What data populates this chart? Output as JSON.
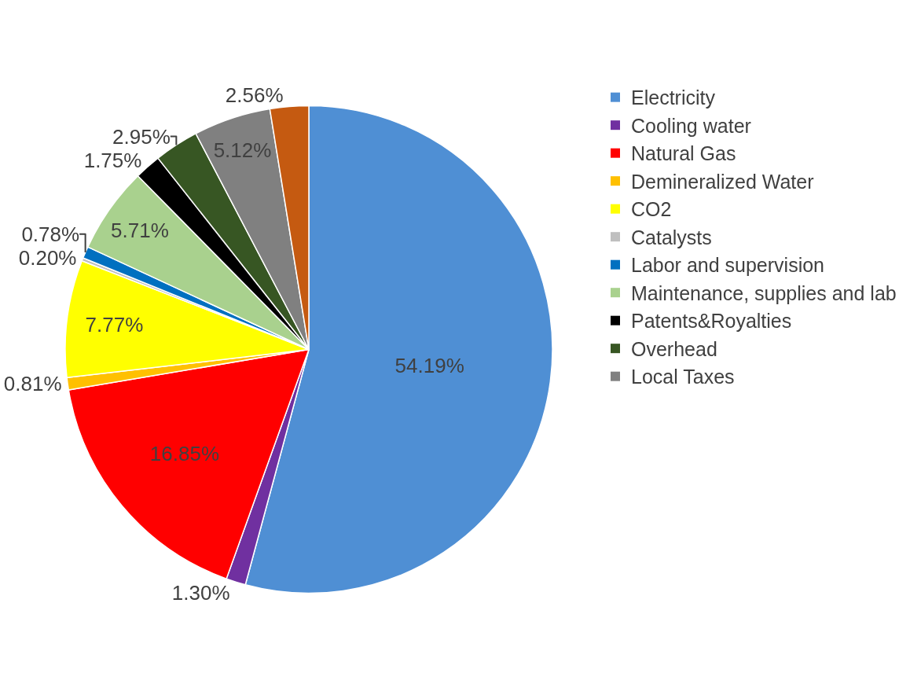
{
  "chart_data": {
    "type": "pie",
    "categories": [
      "Electricity",
      "Cooling water",
      "Natural Gas",
      "Demineralized Water",
      "CO2",
      "Catalysts",
      "Labor and supervision",
      "Maintenance, supplies and lab",
      "Patents&Royalties",
      "Overhead",
      "Local Taxes",
      null
    ],
    "values": [
      54.19,
      1.3,
      16.85,
      0.81,
      7.77,
      0.2,
      0.78,
      5.71,
      1.75,
      2.95,
      5.12,
      2.56
    ],
    "value_labels": [
      "54.19%",
      "1.30%",
      "16.85%",
      "0.81%",
      "7.77%",
      "0.20%",
      "0.78%",
      "5.71%",
      "1.75%",
      "2.95%",
      "5.12%",
      "2.56%"
    ],
    "colors": [
      "#4f8fd4",
      "#7030a0",
      "#ff0000",
      "#ffc000",
      "#ffff00",
      "#bfbfbf",
      "#0070c0",
      "#a9d18e",
      "#000000",
      "#375623",
      "#808080",
      "#c55a11"
    ],
    "legend": "right"
  }
}
